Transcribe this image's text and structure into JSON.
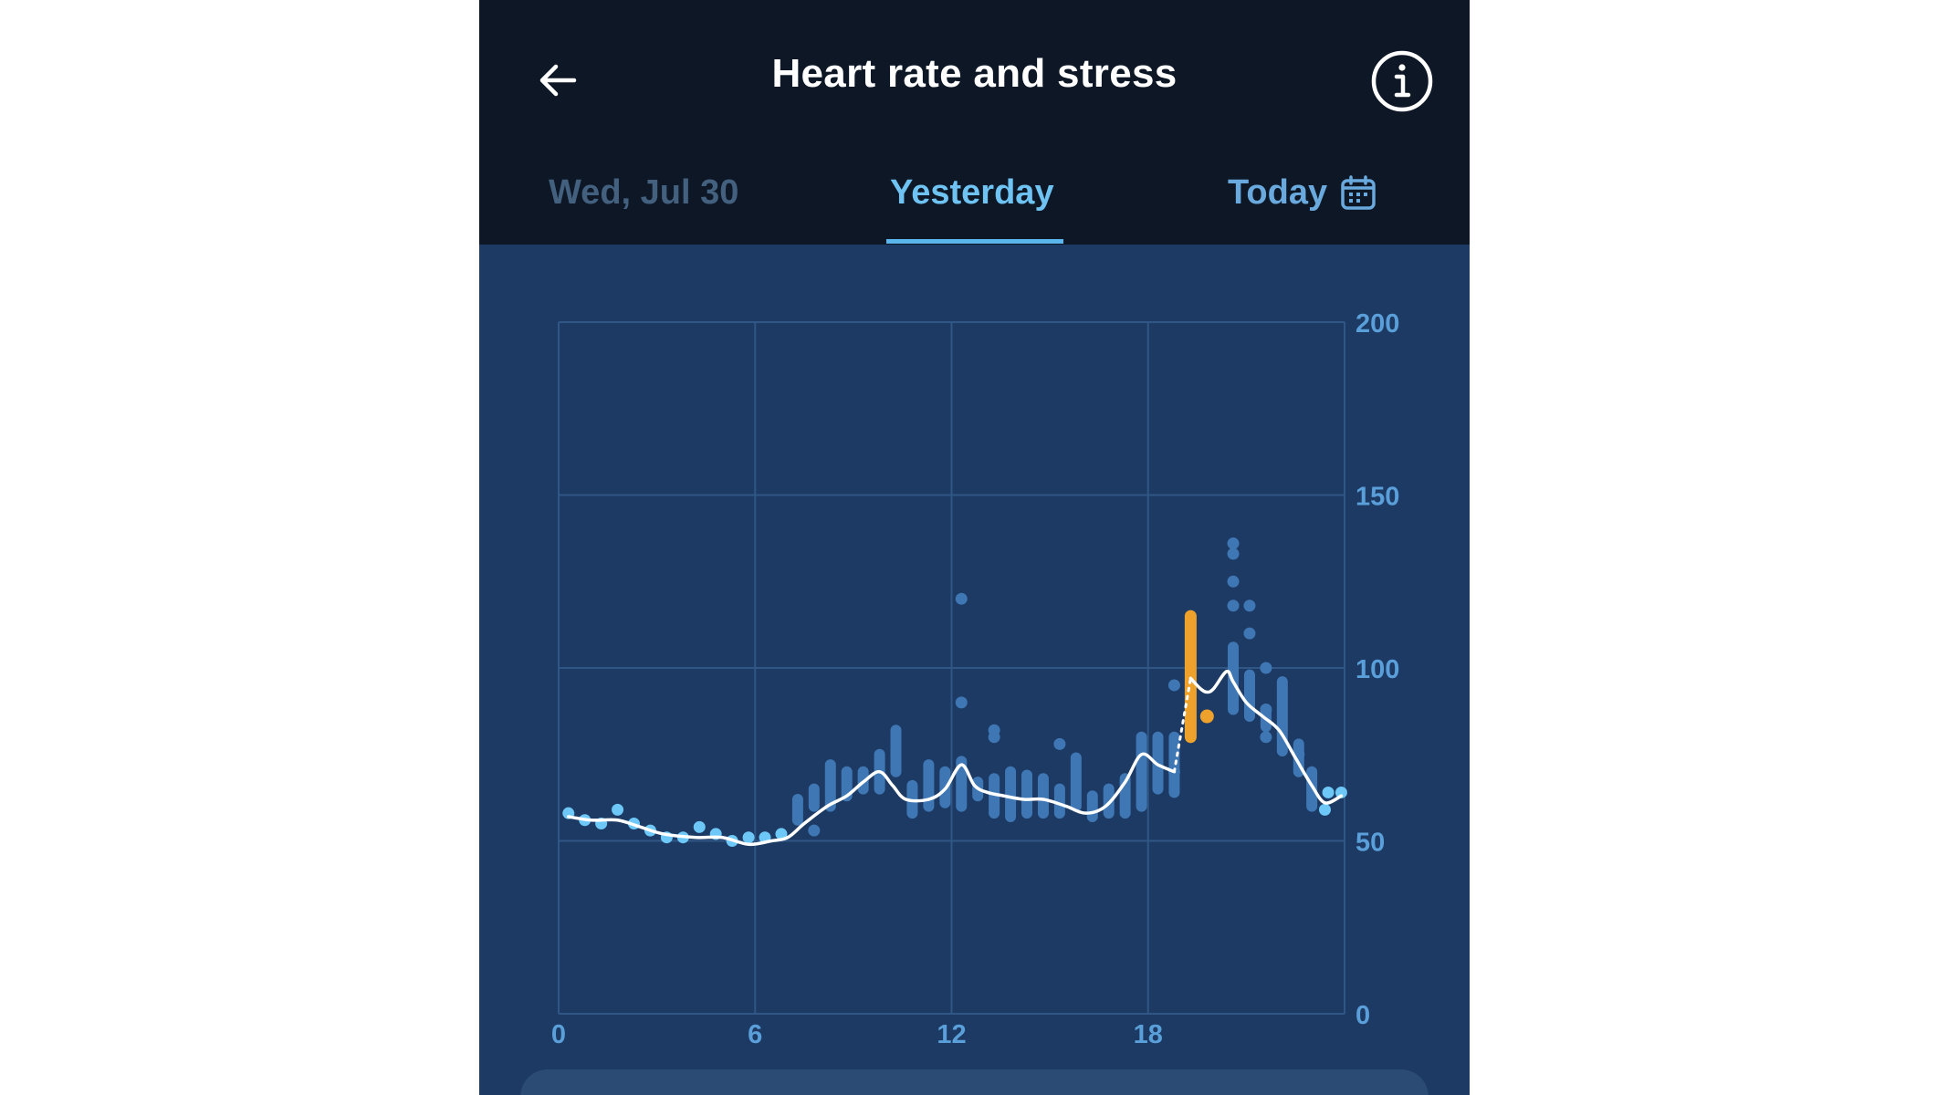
{
  "header": {
    "title": "Heart rate and stress",
    "back_icon": "arrow-left-icon",
    "info_icon": "info-icon"
  },
  "tabs": [
    {
      "label": "Wed, Jul 30",
      "active": false
    },
    {
      "label": "Yesterday",
      "active": true
    },
    {
      "label": "Today",
      "active": false,
      "icon": "calendar-icon"
    }
  ],
  "colors": {
    "header_bg": "#0d1726",
    "chart_bg": "#1c3a63",
    "active_tab": "#6ec3f2",
    "line": "#ffffff",
    "resting_dots": "#6ec8f7",
    "ranges": "#3f77b4",
    "stress": "#eea22b"
  },
  "chart_data": {
    "type": "line",
    "title": "",
    "xlabel": "",
    "ylabel": "",
    "xlim": [
      0,
      24
    ],
    "ylim": [
      0,
      200
    ],
    "x_ticks": [
      "0",
      "6",
      "12",
      "18"
    ],
    "x_tick_values": [
      0,
      6,
      12,
      18
    ],
    "y_ticks": [
      "0",
      "50",
      "100",
      "150",
      "200"
    ],
    "y_tick_values": [
      0,
      50,
      100,
      150,
      200
    ],
    "grid": true,
    "series": [
      {
        "kind": "smoothed-line",
        "points": [
          [
            0.3,
            57
          ],
          [
            1,
            56
          ],
          [
            1.8,
            56
          ],
          [
            2.5,
            54
          ],
          [
            3.2,
            52
          ],
          [
            4.2,
            51
          ],
          [
            5,
            51
          ],
          [
            5.8,
            49
          ],
          [
            6.5,
            50
          ],
          [
            7,
            51
          ],
          [
            7.5,
            55
          ],
          [
            8.2,
            60
          ],
          [
            8.8,
            63
          ],
          [
            9.3,
            67
          ],
          [
            9.8,
            70
          ],
          [
            10.2,
            66
          ],
          [
            10.6,
            62
          ],
          [
            11.3,
            62
          ],
          [
            11.8,
            65
          ],
          [
            12.3,
            72
          ],
          [
            12.7,
            66
          ],
          [
            13.1,
            64
          ],
          [
            13.6,
            63
          ],
          [
            14.2,
            62
          ],
          [
            14.8,
            62
          ],
          [
            15.5,
            60
          ],
          [
            16.1,
            58
          ],
          [
            16.7,
            60
          ],
          [
            17.3,
            67
          ],
          [
            17.8,
            75
          ],
          [
            18.3,
            72
          ],
          [
            18.8,
            70
          ]
        ]
      },
      {
        "kind": "smoothed-line",
        "points": [
          [
            19.3,
            97
          ],
          [
            19.6,
            94
          ],
          [
            19.8,
            93
          ],
          [
            20,
            94
          ],
          [
            20.4,
            99
          ],
          [
            20.6,
            96
          ],
          [
            21,
            90
          ],
          [
            21.5,
            86
          ],
          [
            22,
            82
          ],
          [
            22.5,
            74
          ],
          [
            23,
            66
          ],
          [
            23.4,
            61
          ],
          [
            23.9,
            63
          ]
        ]
      },
      {
        "kind": "gap-dotted",
        "points": [
          [
            18.8,
            70
          ],
          [
            19.3,
            97
          ]
        ]
      },
      {
        "kind": "resting-dots",
        "points": [
          [
            0.3,
            58
          ],
          [
            0.8,
            56
          ],
          [
            1.3,
            55
          ],
          [
            1.8,
            59
          ],
          [
            2.3,
            55
          ],
          [
            2.8,
            53
          ],
          [
            3.3,
            51
          ],
          [
            3.8,
            51
          ],
          [
            4.3,
            54
          ],
          [
            4.8,
            52
          ],
          [
            5.3,
            50
          ],
          [
            5.8,
            51
          ],
          [
            6.3,
            51
          ],
          [
            6.8,
            52
          ],
          [
            23.4,
            59
          ],
          [
            23.5,
            64
          ],
          [
            23.9,
            64
          ]
        ]
      },
      {
        "kind": "range-bars",
        "ranges": [
          [
            7.3,
            56,
            62
          ],
          [
            7.8,
            60,
            65
          ],
          [
            8.3,
            60,
            72
          ],
          [
            8.8,
            63,
            70
          ],
          [
            9.3,
            65,
            70
          ],
          [
            9.8,
            65,
            75
          ],
          [
            10.3,
            70,
            82
          ],
          [
            10.8,
            58,
            66
          ],
          [
            11.3,
            60,
            72
          ],
          [
            11.8,
            61,
            70
          ],
          [
            12.3,
            60,
            73
          ],
          [
            12.8,
            63,
            67
          ],
          [
            13.3,
            58,
            68
          ],
          [
            13.8,
            57,
            70
          ],
          [
            14.3,
            58,
            69
          ],
          [
            14.8,
            58,
            68
          ],
          [
            15.3,
            58,
            65
          ],
          [
            15.8,
            60,
            74
          ],
          [
            16.3,
            57,
            63
          ],
          [
            16.8,
            58,
            65
          ],
          [
            17.3,
            58,
            68
          ],
          [
            17.8,
            60,
            80
          ],
          [
            18.3,
            65,
            80
          ],
          [
            18.8,
            64,
            80
          ],
          [
            20.6,
            88,
            106
          ],
          [
            21.1,
            86,
            98
          ],
          [
            21.6,
            83,
            88
          ],
          [
            22.1,
            76,
            96
          ],
          [
            22.6,
            70,
            78
          ],
          [
            23,
            60,
            70
          ]
        ]
      },
      {
        "kind": "scatter-dots",
        "points": [
          [
            7.8,
            53
          ],
          [
            12.3,
            120
          ],
          [
            12.3,
            90
          ],
          [
            13.3,
            82
          ],
          [
            13.3,
            80
          ],
          [
            15.3,
            78
          ],
          [
            18.8,
            95
          ],
          [
            18.8,
            70
          ],
          [
            20.6,
            136
          ],
          [
            20.6,
            133
          ],
          [
            20.6,
            125
          ],
          [
            20.6,
            118
          ],
          [
            21.1,
            118
          ],
          [
            21.1,
            110
          ],
          [
            21.6,
            100
          ],
          [
            21.6,
            88
          ],
          [
            21.6,
            80
          ],
          [
            22.6,
            75
          ]
        ]
      },
      {
        "kind": "stress",
        "bar": [
          19.3,
          80,
          115
        ],
        "dot": [
          19.8,
          86
        ]
      }
    ]
  }
}
